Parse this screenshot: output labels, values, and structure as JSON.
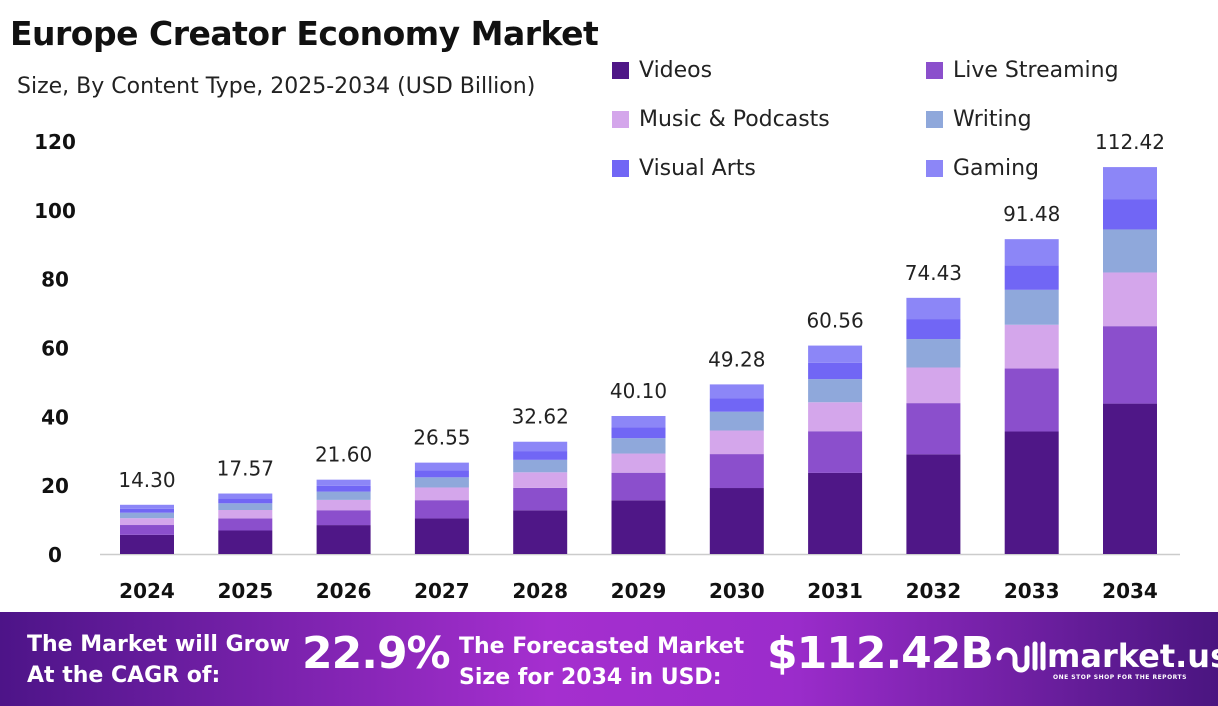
{
  "chart_data": {
    "type": "bar",
    "stacked": true,
    "title": "Europe Creator Economy Market",
    "subtitle": "Size, By Content Type, 2025-2034 (USD Billion)",
    "xlabel": "",
    "ylabel": "",
    "ylim": [
      0,
      120
    ],
    "yticks": [
      0,
      20,
      40,
      60,
      80,
      100,
      120
    ],
    "grid": false,
    "legend_position": "top-right",
    "categories": [
      "2024",
      "2025",
      "2026",
      "2027",
      "2028",
      "2029",
      "2030",
      "2031",
      "2032",
      "2033",
      "2034"
    ],
    "totals": [
      "14.30",
      "17.57",
      "21.60",
      "26.55",
      "32.62",
      "40.10",
      "49.28",
      "60.56",
      "74.43",
      "91.48",
      "112.42"
    ],
    "series": [
      {
        "name": "Videos",
        "color": "#4f1787",
        "values": [
          5.56,
          6.83,
          8.4,
          10.33,
          12.69,
          15.6,
          19.17,
          23.56,
          28.95,
          35.59,
          43.7
        ]
      },
      {
        "name": "Live Streaming",
        "color": "#8b4fcc",
        "values": [
          2.86,
          3.51,
          4.32,
          5.31,
          6.52,
          8.02,
          9.86,
          12.11,
          14.89,
          18.3,
          22.5
        ]
      },
      {
        "name": "Music & Podcasts",
        "color": "#d4a6eb",
        "values": [
          1.99,
          2.44,
          3.0,
          3.69,
          4.53,
          5.57,
          6.85,
          8.42,
          10.35,
          12.72,
          15.6
        ]
      },
      {
        "name": "Writing",
        "color": "#8fa8db",
        "values": [
          1.59,
          1.95,
          2.4,
          2.95,
          3.62,
          4.45,
          5.47,
          6.72,
          8.26,
          10.15,
          12.5
        ]
      },
      {
        "name": "Visual Arts",
        "color": "#7166f5",
        "values": [
          1.12,
          1.37,
          1.68,
          2.07,
          2.54,
          3.13,
          3.84,
          4.72,
          5.81,
          7.14,
          8.7
        ]
      },
      {
        "name": "Gaming",
        "color": "#8c86f7",
        "values": [
          1.18,
          1.47,
          1.8,
          2.2,
          2.72,
          3.33,
          4.09,
          5.03,
          6.17,
          7.58,
          9.42
        ]
      }
    ]
  },
  "banner": {
    "cagr_label_1": "The Market will Grow",
    "cagr_label_2": "At the CAGR of:",
    "cagr_value": "22.9%",
    "forecast_label_1": "The Forecasted Market",
    "forecast_label_2": "Size for 2034 in USD:",
    "forecast_value": "$112.42B",
    "logo_name": "market.us",
    "logo_tagline": "ONE STOP SHOP FOR THE REPORTS"
  }
}
